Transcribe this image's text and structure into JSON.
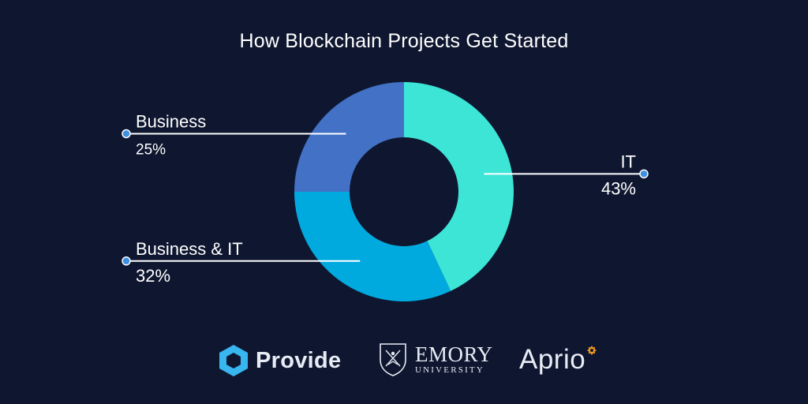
{
  "chart_data": {
    "type": "pie",
    "title": "How Blockchain Projects Get Started",
    "slices": [
      {
        "label": "IT",
        "value": 43,
        "value_label": "43%",
        "color": "#3de5d7"
      },
      {
        "label": "Business & IT",
        "value": 32,
        "value_label": "32%",
        "color": "#00aadf"
      },
      {
        "label": "Business",
        "value": 25,
        "value_label": "25%",
        "color": "#4271c5"
      }
    ],
    "donut": true,
    "legend": "callout lines beside slices"
  },
  "colors": {
    "background": "#0f1730",
    "leader_line": "#ffffff",
    "leader_dot": "#3d8fe0"
  },
  "logos": {
    "provide": {
      "text": "Provide",
      "icon": "hexagon-logo-icon",
      "color": "#38b6ef"
    },
    "emory": {
      "name": "EMORY",
      "sub": "UNIVERSITY",
      "icon": "shield-crest-icon"
    },
    "aprio": {
      "text": "Aprio",
      "icon": "badge-dot-icon",
      "color": "#f39a1e"
    }
  }
}
